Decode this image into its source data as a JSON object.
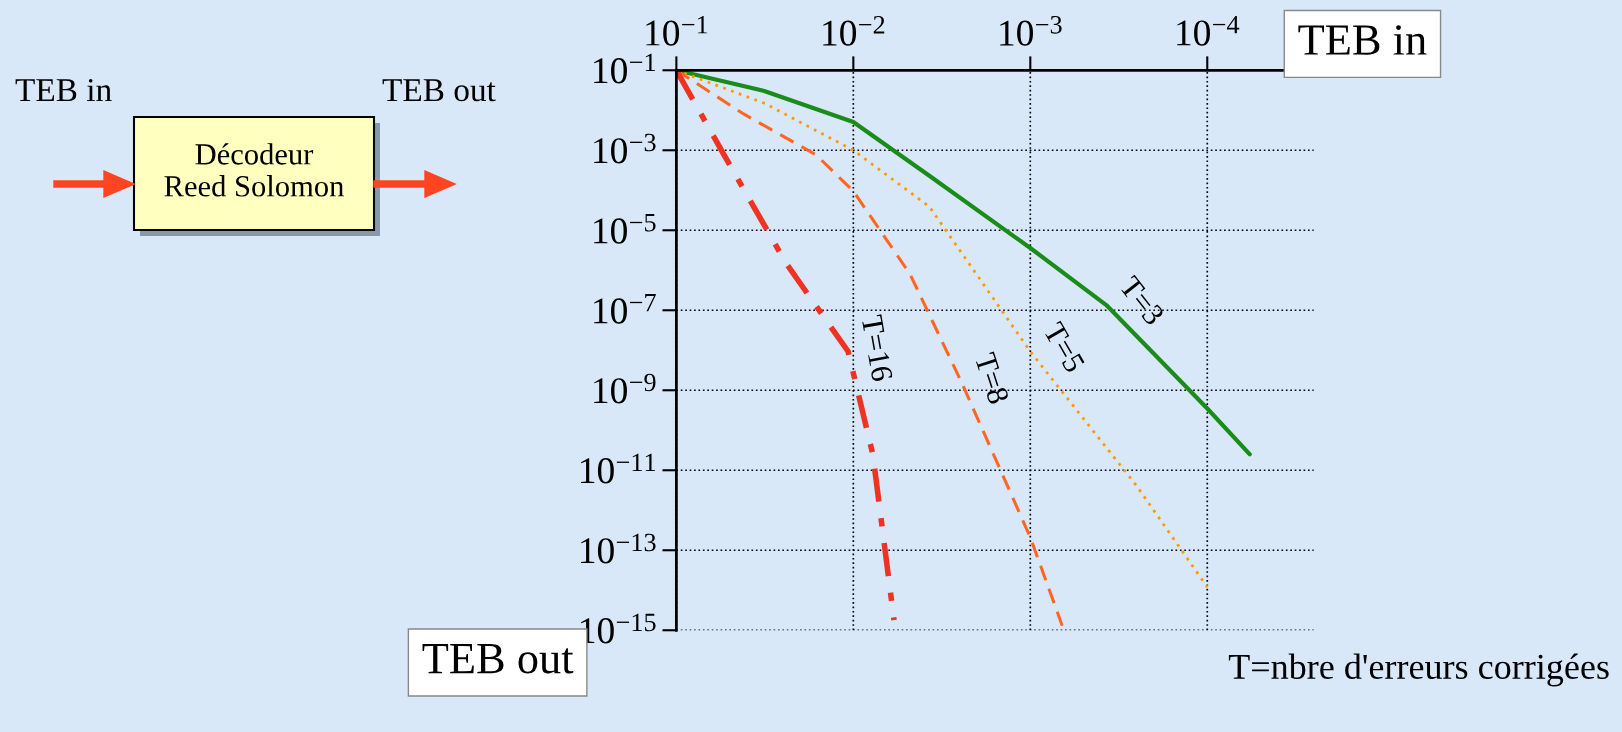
{
  "chart_data": {
    "type": "line",
    "xlabel": "TEB in",
    "ylabel": "TEB out",
    "log": "xy",
    "grid": true,
    "xlim": [
      0.1,
      2.5e-05
    ],
    "ylim": [
      1e-15,
      0.1
    ],
    "xticks": [
      {
        "value": 0.1,
        "label": "10$^{−1}$"
      },
      {
        "value": 0.01,
        "label": "10$^{−2}$"
      },
      {
        "value": 0.001,
        "label": "10$^{−3}$"
      },
      {
        "value": 0.0001,
        "label": "10$^{−4}$"
      }
    ],
    "yticks": [
      {
        "value": 0.1,
        "label": "10$^{−1}$"
      },
      {
        "value": 0.001,
        "label": "10$^{−3}$"
      },
      {
        "value": 1e-05,
        "label": "10$^{−5}$"
      },
      {
        "value": 1e-07,
        "label": "10$^{−7}$"
      },
      {
        "value": 1e-09,
        "label": "10$^{−9}$"
      },
      {
        "value": 1e-11,
        "label": "10$^{−11}$"
      },
      {
        "value": 1e-13,
        "label": "10$^{−13}$"
      },
      {
        "value": 1e-15,
        "label": "10$^{−15}$"
      }
    ],
    "series": [
      {
        "name": "T=3",
        "color": "#1a8c1a",
        "line_style": "solid",
        "x": [
          0.1,
          0.0316,
          0.01,
          0.00372,
          0.001,
          0.000372,
          0.0001,
          5.75e-05
        ],
        "values": [
          0.1,
          0.03,
          0.0051,
          0.00023,
          3.6e-06,
          1.35e-07,
          3.5e-10,
          2.5e-11
        ]
      },
      {
        "name": "T=5",
        "color": "#ff9900",
        "line_style": "dotted",
        "x": [
          0.1,
          0.0316,
          0.01,
          0.00372,
          0.001,
          0.000251,
          0.0001
        ],
        "values": [
          0.1,
          0.0148,
          0.001,
          3.9e-05,
          9.3e-09,
          4.1e-12,
          1.2e-14
        ]
      },
      {
        "name": "T=8",
        "color": "#ff6622",
        "line_style": "dashed",
        "x": [
          0.1,
          0.0417,
          0.0162,
          0.01,
          0.00479,
          0.00245,
          0.001,
          0.00066
        ],
        "values": [
          0.1,
          0.0081,
          0.00076,
          9.5e-05,
          8.1e-07,
          1.6e-09,
          2.1e-13,
          1.3e-15
        ]
      },
      {
        "name": "T=16",
        "color": "#ee3322",
        "line_style": "dashdot",
        "x": [
          0.1,
          0.0537,
          0.024,
          0.0107,
          0.00776,
          0.00589
        ],
        "values": [
          0.1,
          0.00076,
          1.5e-06,
          9.3e-09,
          2.5e-11,
          1.8e-15
        ]
      }
    ],
    "annotations": [
      "TEB in",
      "TEB out",
      "Décodeur\nReed Solomon",
      "T=nbre d'erreurs corrigées"
    ]
  }
}
